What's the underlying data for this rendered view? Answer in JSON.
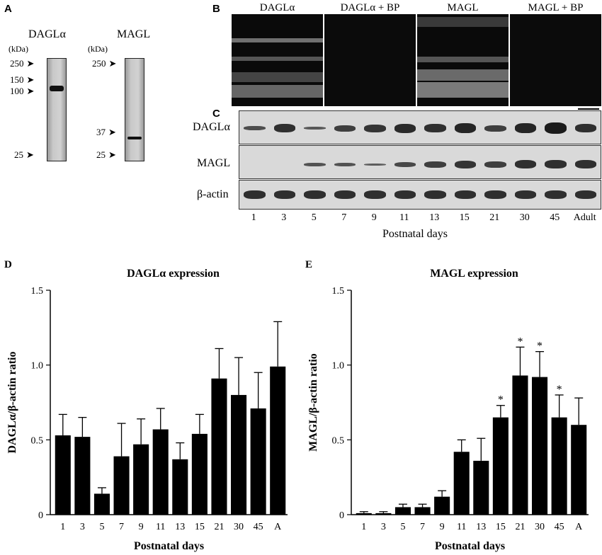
{
  "panel_a": {
    "label": "A",
    "dagl": {
      "title": "DAGLα",
      "unit": "(kDa)",
      "markers": [
        "250",
        "150",
        "100",
        "25"
      ]
    },
    "magl": {
      "title": "MAGL",
      "unit": "(kDa)",
      "markers": [
        "250",
        "37",
        "25"
      ]
    }
  },
  "panel_b": {
    "label": "B",
    "tiles": [
      "DAGLα",
      "DAGLα + BP",
      "MAGL",
      "MAGL + BP"
    ]
  },
  "panel_c": {
    "label": "C",
    "rows": [
      "DAGLα",
      "MAGL",
      "β-actin"
    ],
    "lanes": [
      "1",
      "3",
      "5",
      "7",
      "9",
      "11",
      "13",
      "15",
      "21",
      "30",
      "45",
      "Adult"
    ],
    "xlabel": "Postnatal days"
  },
  "chart_data": [
    {
      "type": "bar",
      "panel": "D",
      "title": "DAGLα expression",
      "xlabel": "Postnatal days",
      "ylabel": "DAGLα/β-actin ratio",
      "categories": [
        "1",
        "3",
        "5",
        "7",
        "9",
        "11",
        "13",
        "15",
        "21",
        "30",
        "45",
        "A"
      ],
      "values": [
        0.53,
        0.52,
        0.14,
        0.39,
        0.47,
        0.57,
        0.37,
        0.54,
        0.91,
        0.8,
        0.71,
        0.99
      ],
      "errors": [
        0.14,
        0.13,
        0.04,
        0.22,
        0.17,
        0.14,
        0.11,
        0.13,
        0.2,
        0.25,
        0.24,
        0.3
      ],
      "stars": [],
      "ylim": [
        0,
        1.5
      ],
      "yticks": [
        "0",
        "0.5",
        "1.0",
        "1.5"
      ],
      "grid": false
    },
    {
      "type": "bar",
      "panel": "E",
      "title": "MAGL expression",
      "xlabel": "Postnatal days",
      "ylabel": "MAGL/β-actin ratio",
      "categories": [
        "1",
        "3",
        "5",
        "7",
        "9",
        "11",
        "13",
        "15",
        "21",
        "30",
        "45",
        "A"
      ],
      "values": [
        0.01,
        0.01,
        0.05,
        0.05,
        0.12,
        0.42,
        0.36,
        0.65,
        0.93,
        0.92,
        0.65,
        0.6
      ],
      "errors": [
        0.01,
        0.01,
        0.02,
        0.02,
        0.04,
        0.08,
        0.15,
        0.08,
        0.19,
        0.17,
        0.15,
        0.18
      ],
      "stars": [
        "15",
        "21",
        "30",
        "45"
      ],
      "star_symbol": "*",
      "ylim": [
        0,
        1.5
      ],
      "yticks": [
        "0",
        "0.5",
        "1.0",
        "1.5"
      ],
      "grid": false
    }
  ]
}
